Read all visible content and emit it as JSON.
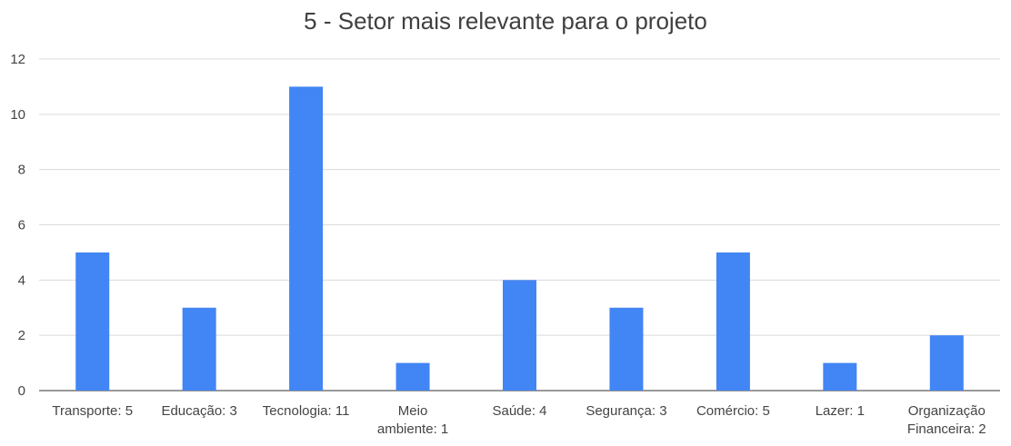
{
  "chart_data": {
    "type": "bar",
    "title": "5 - Setor mais relevante para o projeto",
    "categories": [
      "Transporte: 5",
      "Educação: 3",
      "Tecnologia: 11",
      "Meio ambiente: 1",
      "Saúde: 4",
      "Segurança: 3",
      "Comércio: 5",
      "Lazer: 1",
      "Organização Financeira: 2"
    ],
    "category_lines": [
      [
        "Transporte: 5"
      ],
      [
        "Educação: 3"
      ],
      [
        "Tecnologia: 11"
      ],
      [
        "Meio",
        "ambiente: 1"
      ],
      [
        "Saúde: 4"
      ],
      [
        "Segurança: 3"
      ],
      [
        "Comércio: 5"
      ],
      [
        "Lazer: 1"
      ],
      [
        "Organização",
        "Financeira: 2"
      ]
    ],
    "values": [
      5,
      3,
      11,
      1,
      4,
      3,
      5,
      1,
      2
    ],
    "xlabel": "",
    "ylabel": "",
    "ylim": [
      0,
      12
    ],
    "yticks": [
      0,
      2,
      4,
      6,
      8,
      10,
      12
    ],
    "grid": true,
    "legend": "none",
    "bar_color": "#4285f4"
  }
}
